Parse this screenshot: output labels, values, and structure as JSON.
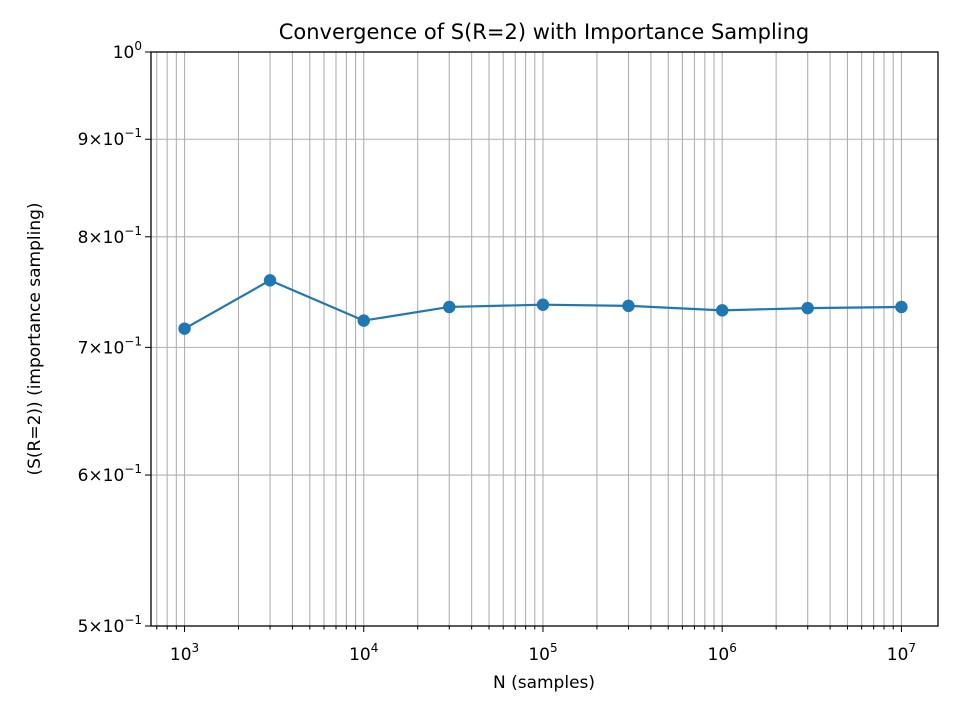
{
  "chart_data": {
    "type": "line",
    "title": "Convergence of S(R=2) with Importance Sampling",
    "xlabel": "N (samples)",
    "ylabel": "(S(R=2)) (importance sampling)",
    "x_scale": "log",
    "y_scale": "log",
    "xlim": [
      650,
      16000000
    ],
    "ylim": [
      0.5,
      1.0
    ],
    "grid": "both, major and minor",
    "x_ticks": [
      {
        "value": 1000,
        "base": "10",
        "exp": "3"
      },
      {
        "value": 10000,
        "base": "10",
        "exp": "4"
      },
      {
        "value": 100000,
        "base": "10",
        "exp": "5"
      },
      {
        "value": 1000000,
        "base": "10",
        "exp": "6"
      },
      {
        "value": 10000000,
        "base": "10",
        "exp": "7"
      }
    ],
    "y_ticks": [
      {
        "value": 1.0,
        "mant": "",
        "base": "10",
        "exp": "0"
      },
      {
        "value": 0.9,
        "mant": "9",
        "base": "10",
        "exp": "−1"
      },
      {
        "value": 0.8,
        "mant": "8",
        "base": "10",
        "exp": "−1"
      },
      {
        "value": 0.7,
        "mant": "7",
        "base": "10",
        "exp": "−1"
      },
      {
        "value": 0.6,
        "mant": "6",
        "base": "10",
        "exp": "−1"
      },
      {
        "value": 0.5,
        "mant": "5",
        "base": "10",
        "exp": "−1"
      }
    ],
    "series": [
      {
        "color": "#1f77b4",
        "marker": "circle",
        "x": [
          1000,
          3000,
          10000,
          30000,
          100000,
          300000,
          1000000,
          3000000,
          10000000
        ],
        "y": [
          0.716,
          0.759,
          0.723,
          0.735,
          0.737,
          0.736,
          0.732,
          0.734,
          0.735
        ]
      }
    ]
  }
}
